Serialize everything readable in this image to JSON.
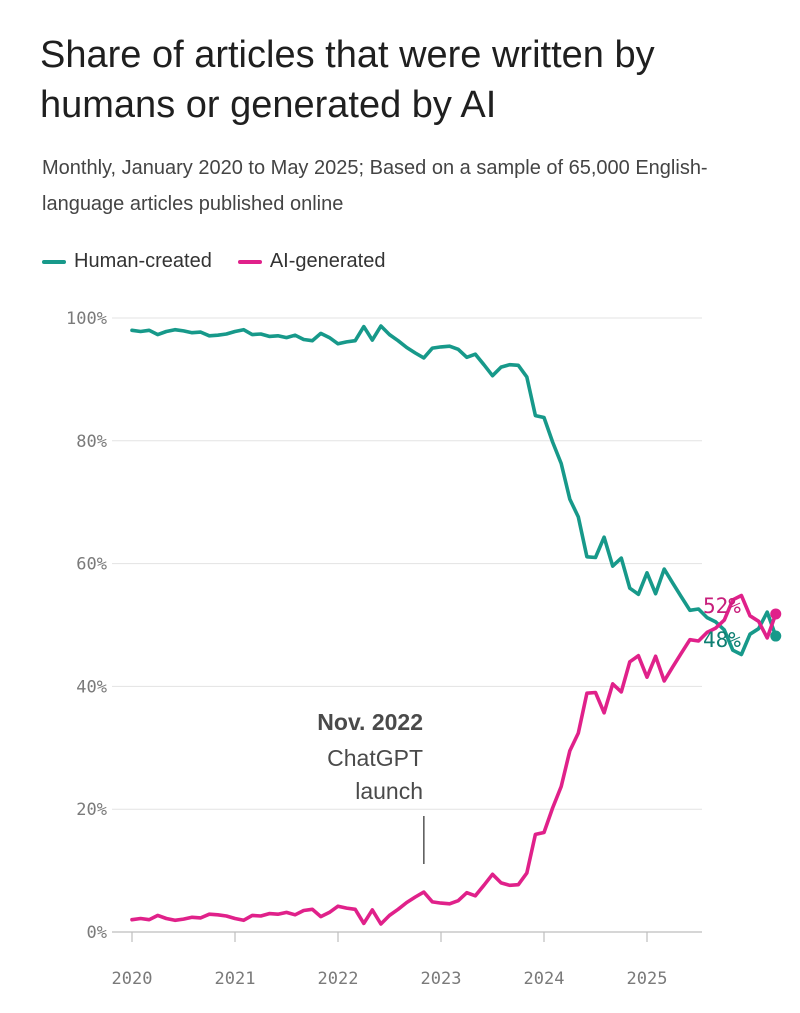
{
  "title": "Share of articles that were written by humans or generated by AI",
  "subtitle": "Monthly, January 2020 to May 2025; Based on a sample of 65,000 English-language articles published online",
  "legend": [
    {
      "name": "Human-created",
      "color": "#17998a"
    },
    {
      "name": "AI-generated",
      "color": "#e0218a"
    }
  ],
  "annotation": {
    "bold": "Nov. 2022",
    "line1": "ChatGPT",
    "line2": "launch"
  },
  "end_labels": {
    "ai": "52%",
    "human": "48%"
  },
  "chart_data": {
    "type": "line",
    "x_start": "2020-01",
    "x_step": "month",
    "ylim": [
      0,
      100
    ],
    "yticks": [
      "0%",
      "20%",
      "40%",
      "60%",
      "80%",
      "100%"
    ],
    "xticks": [
      "2020",
      "2021",
      "2022",
      "2023",
      "2024",
      "2025"
    ],
    "grid": true,
    "legend_position": "top-left",
    "series": [
      {
        "name": "Human-created",
        "color": "#17998a",
        "values": [
          98,
          97.8,
          98,
          97.3,
          97.8,
          98.1,
          97.9,
          97.6,
          97.7,
          97.1,
          97.2,
          97.4,
          97.8,
          98.1,
          97.3,
          97.4,
          97,
          97.1,
          96.8,
          97.2,
          96.5,
          96.3,
          97.5,
          96.8,
          95.8,
          96.1,
          96.3,
          98.6,
          96.4,
          98.7,
          97.3,
          96.3,
          95.2,
          94.3,
          93.5,
          95.1,
          95.3,
          95.4,
          94.9,
          93.6,
          94.1,
          92.4,
          90.6,
          92,
          92.4,
          92.3,
          90.4,
          84.1,
          83.8,
          79.8,
          76.3,
          70.5,
          67.6,
          61.1,
          61,
          64.3,
          59.6,
          60.9,
          56,
          55,
          58.5,
          55.1,
          59.1,
          56.8,
          54.6,
          52.4,
          52.6,
          51.2,
          50.5,
          49.2,
          45.9,
          45.2,
          48.5,
          49.4,
          52.1,
          48.2
        ]
      },
      {
        "name": "AI-generated",
        "color": "#e0218a",
        "values": [
          2,
          2.2,
          2,
          2.7,
          2.2,
          1.9,
          2.1,
          2.4,
          2.3,
          2.9,
          2.8,
          2.6,
          2.2,
          1.9,
          2.7,
          2.6,
          3,
          2.9,
          3.2,
          2.8,
          3.5,
          3.7,
          2.5,
          3.2,
          4.2,
          3.9,
          3.7,
          1.4,
          3.6,
          1.3,
          2.7,
          3.7,
          4.8,
          5.7,
          6.5,
          4.9,
          4.7,
          4.6,
          5.1,
          6.4,
          5.9,
          7.6,
          9.4,
          8,
          7.6,
          7.7,
          9.6,
          15.9,
          16.2,
          20.2,
          23.7,
          29.5,
          32.4,
          38.9,
          39,
          35.7,
          40.4,
          39.1,
          44,
          45,
          41.5,
          44.9,
          40.9,
          43.2,
          45.4,
          47.6,
          47.4,
          48.8,
          49.5,
          50.8,
          54.1,
          54.8,
          51.5,
          50.6,
          47.9,
          51.8
        ]
      }
    ]
  }
}
